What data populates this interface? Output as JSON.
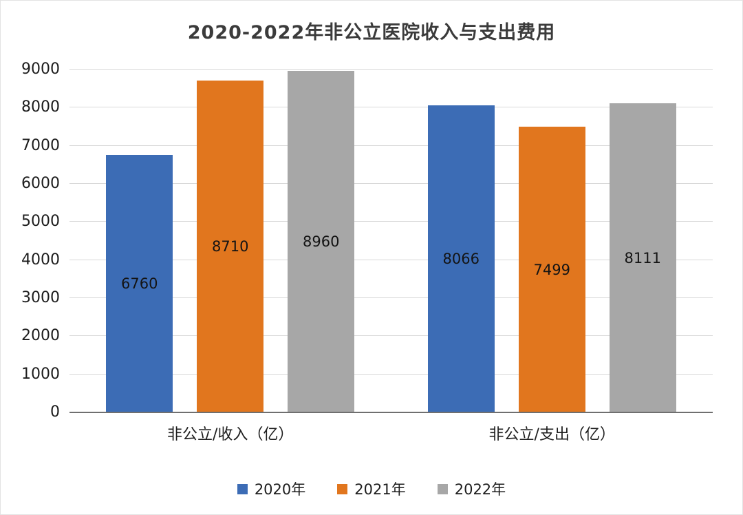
{
  "chart_data": {
    "type": "bar",
    "title": "2020-2022年非公立医院收入与支出费用",
    "categories": [
      "非公立/收入（亿）",
      "非公立/支出（亿）"
    ],
    "series": [
      {
        "name": "2020年",
        "color": "#3c6cb5",
        "values": [
          6760,
          8066
        ]
      },
      {
        "name": "2021年",
        "color": "#e1761e",
        "values": [
          8710,
          7499
        ]
      },
      {
        "name": "2022年",
        "color": "#a7a7a7",
        "values": [
          8960,
          8111
        ]
      }
    ],
    "xlabel": "",
    "ylabel": "",
    "ylim": [
      0,
      9000
    ],
    "ytick_step": 1000,
    "grid": true,
    "legend_position": "bottom"
  },
  "colors": {
    "background": "#ffffff",
    "gridline": "#d8d8d8",
    "axis_line": "#6f6f6f",
    "text": "#1d1d1d"
  }
}
